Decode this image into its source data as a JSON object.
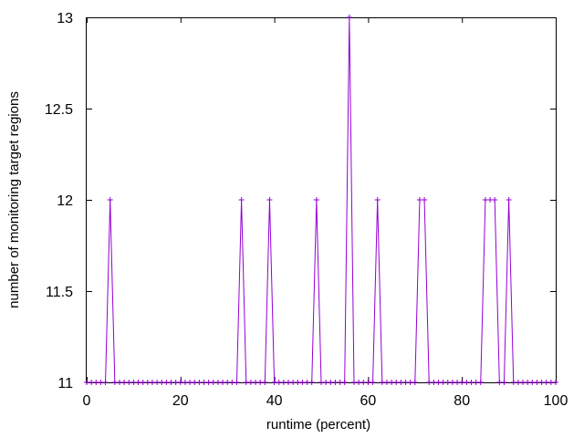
{
  "chart_data": {
    "type": "line",
    "title": "",
    "xlabel": "runtime (percent)",
    "ylabel": "number of monitoring target regions",
    "xlim": [
      0,
      100
    ],
    "ylim": [
      11,
      13
    ],
    "x_ticks": [
      0,
      20,
      40,
      60,
      80,
      100
    ],
    "x_tick_labels": [
      "0",
      "20",
      "40",
      "60",
      "80",
      "100"
    ],
    "y_ticks": [
      11,
      11.5,
      12,
      12.5,
      13
    ],
    "y_tick_labels": [
      "11",
      "11.5",
      "12",
      "12.5",
      "13"
    ],
    "grid": false,
    "legend": "none",
    "marker": "plus",
    "series": [
      {
        "color": "#9400d3",
        "x": [
          0,
          1,
          2,
          3,
          4,
          5,
          6,
          7,
          8,
          9,
          10,
          11,
          12,
          13,
          14,
          15,
          16,
          17,
          18,
          19,
          20,
          21,
          22,
          23,
          24,
          25,
          26,
          27,
          28,
          29,
          30,
          31,
          32,
          33,
          34,
          35,
          36,
          37,
          38,
          39,
          40,
          41,
          42,
          43,
          44,
          45,
          46,
          47,
          48,
          49,
          50,
          51,
          52,
          53,
          54,
          55,
          56,
          57,
          58,
          59,
          60,
          61,
          62,
          63,
          64,
          65,
          66,
          67,
          68,
          69,
          70,
          71,
          72,
          73,
          74,
          75,
          76,
          77,
          78,
          79,
          80,
          81,
          82,
          83,
          84,
          85,
          86,
          87,
          88,
          89,
          90,
          91,
          92,
          93,
          94,
          95,
          96,
          97,
          98,
          99,
          100
        ],
        "y": [
          11,
          11,
          11,
          11,
          11,
          12,
          11,
          11,
          11,
          11,
          11,
          11,
          11,
          11,
          11,
          11,
          11,
          11,
          11,
          11,
          11,
          11,
          11,
          11,
          11,
          11,
          11,
          11,
          11,
          11,
          11,
          11,
          11,
          12,
          11,
          11,
          11,
          11,
          11,
          12,
          11,
          11,
          11,
          11,
          11,
          11,
          11,
          11,
          11,
          12,
          11,
          11,
          11,
          11,
          11,
          11,
          13,
          11,
          11,
          11,
          11,
          11,
          12,
          11,
          11,
          11,
          11,
          11,
          11,
          11,
          11,
          12,
          12,
          11,
          11,
          11,
          11,
          11,
          11,
          11,
          11,
          11,
          11,
          11,
          11,
          12,
          12,
          12,
          11,
          11,
          12,
          11,
          11,
          11,
          11,
          11,
          11,
          11,
          11,
          11,
          11
        ]
      }
    ]
  }
}
